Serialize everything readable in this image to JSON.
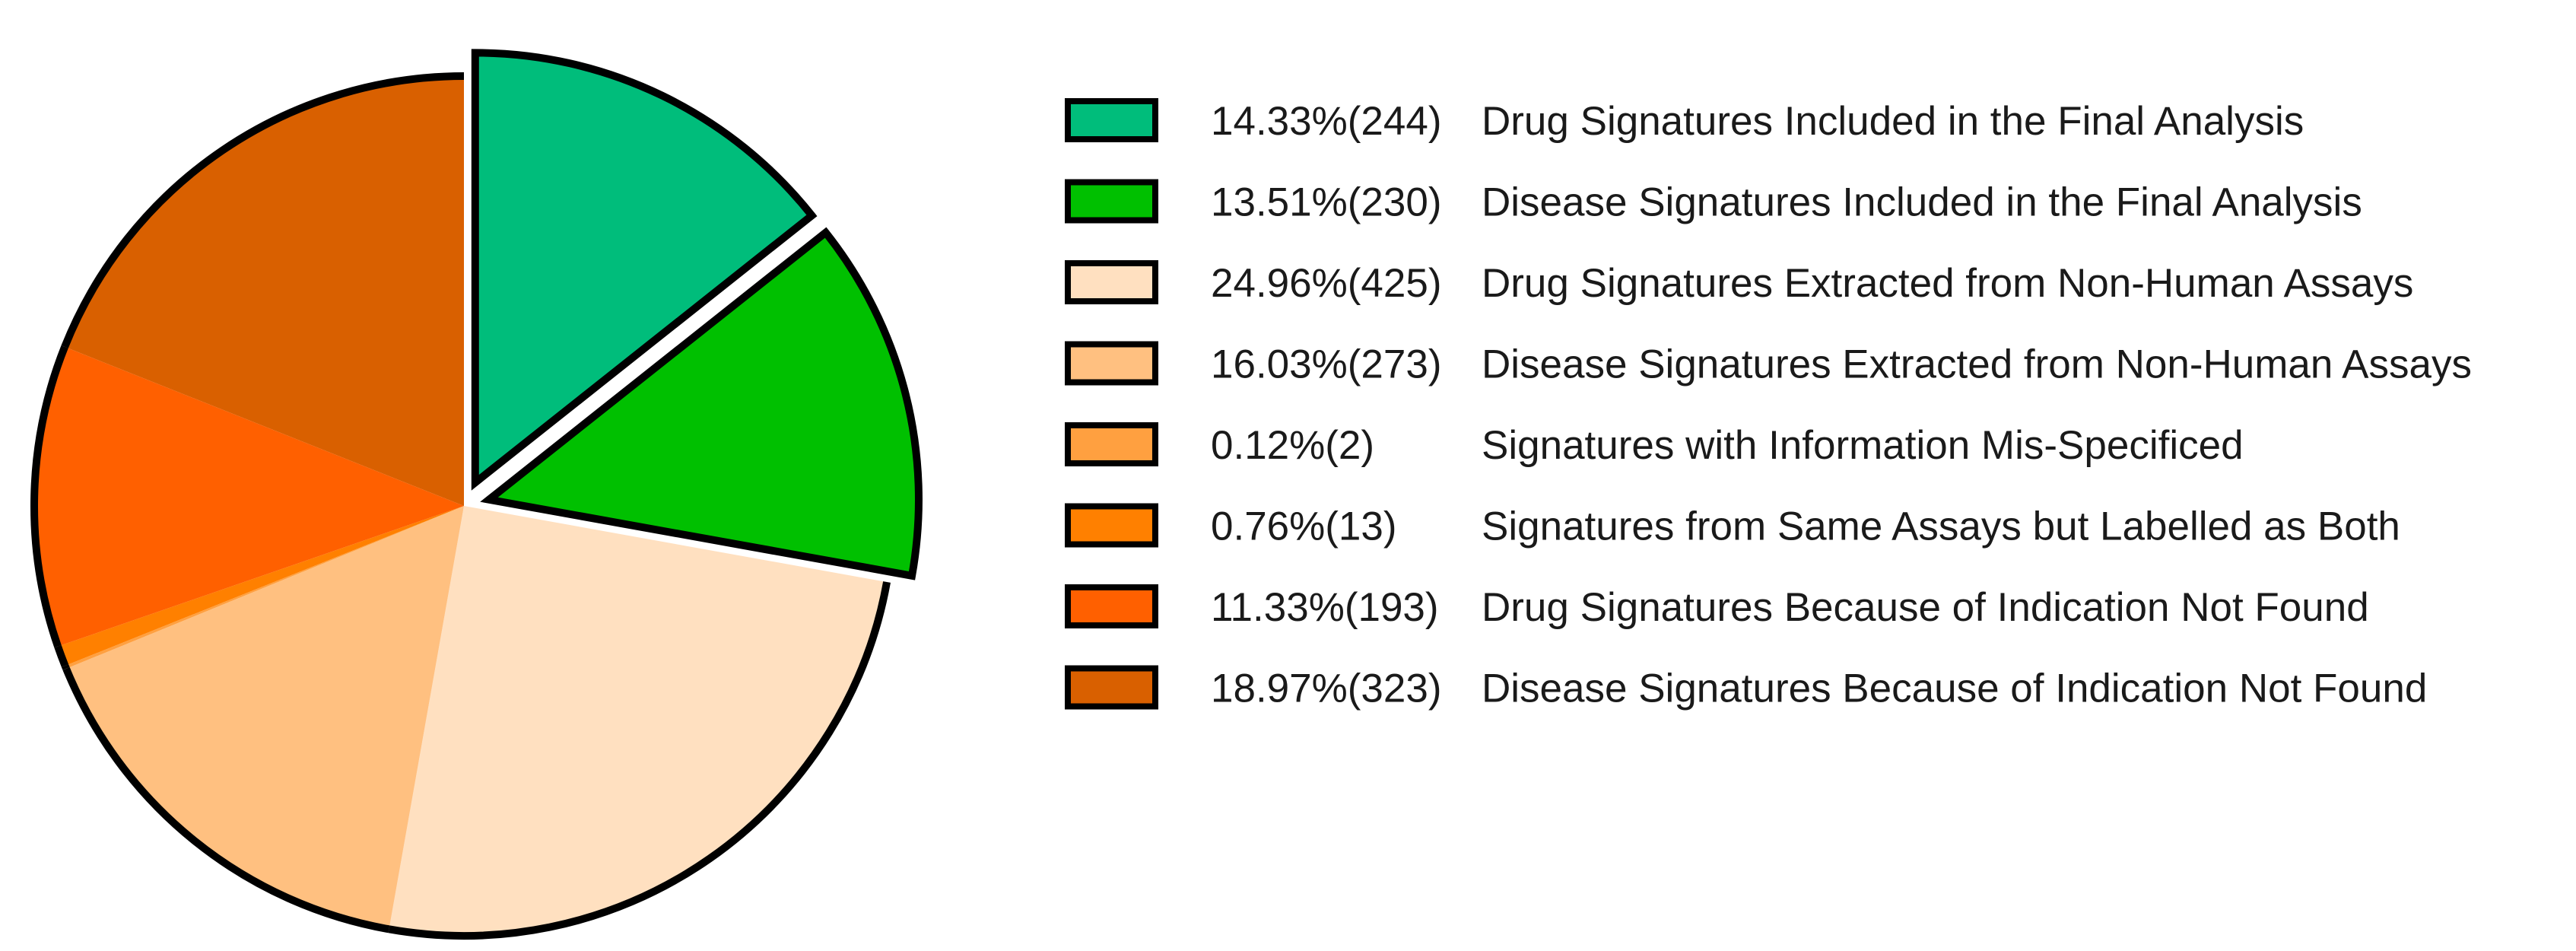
{
  "chart_data": {
    "type": "pie",
    "title": "",
    "legend_position": "right",
    "slices": [
      {
        "pct": "14.33%",
        "count": "(244)",
        "label": "Drug Signatures Included in the Final Analysis",
        "value": 244,
        "color": "#00BD7B",
        "exploded": true
      },
      {
        "pct": "13.51%",
        "count": "(230)",
        "label": "Disease Signatures Included in the Final Analysis",
        "value": 230,
        "color": "#00C000",
        "exploded": true
      },
      {
        "pct": "24.96%",
        "count": "(425)",
        "label": "Drug Signatures Extracted from Non-Human Assays",
        "value": 425,
        "color": "#FFE0C0",
        "exploded": false
      },
      {
        "pct": "16.03%",
        "count": "(273)",
        "label": "Disease Signatures Extracted from Non-Human Assays",
        "value": 273,
        "color": "#FFC080",
        "exploded": false
      },
      {
        "pct": "0.12%",
        "count": "(2)",
        "label": "Signatures with Information Mis-Specificed",
        "value": 2,
        "color": "#FFA040",
        "exploded": false
      },
      {
        "pct": "0.76%",
        "count": "(13)",
        "label": "Signatures from Same Assays but Labelled as Both",
        "value": 13,
        "color": "#FF8000",
        "exploded": false
      },
      {
        "pct": "11.33%",
        "count": "(193)",
        "label": "Drug Signatures Because of Indication Not Found",
        "value": 193,
        "color": "#FF6000",
        "exploded": false
      },
      {
        "pct": "18.97%",
        "count": "(323)",
        "label": "Disease Signatures Because of Indication Not Found",
        "value": 323,
        "color": "#D96000",
        "exploded": false
      }
    ]
  }
}
